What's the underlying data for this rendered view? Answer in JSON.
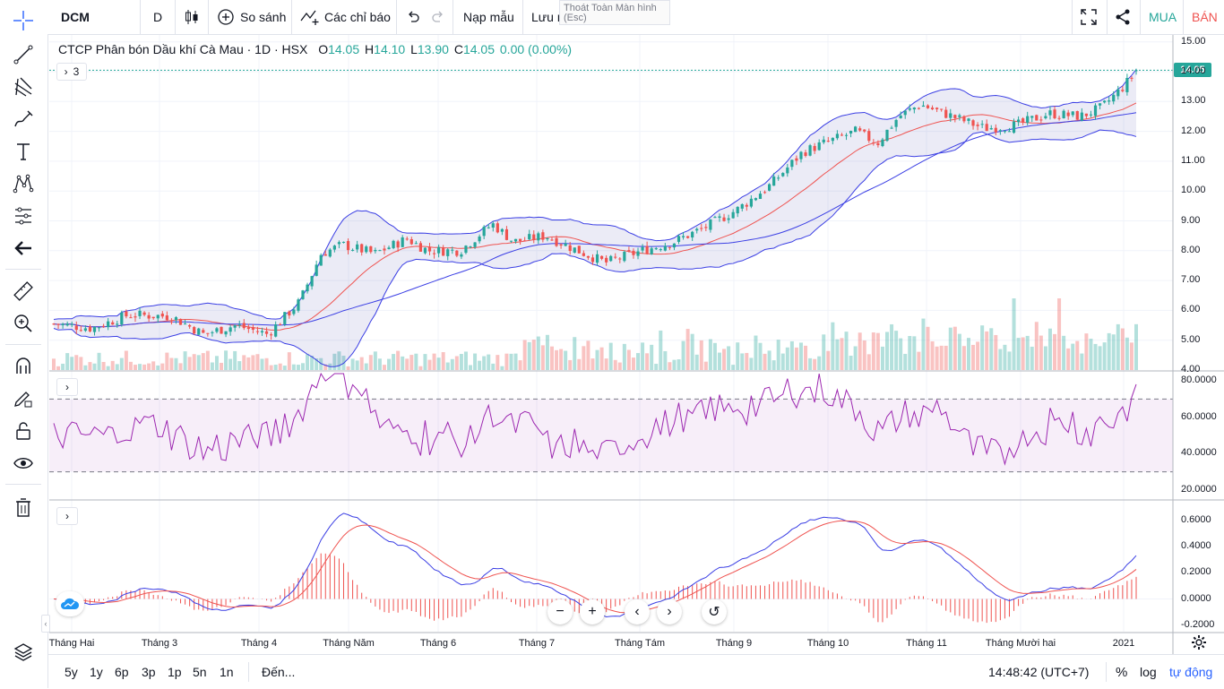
{
  "toolbar": {
    "symbol": "DCM",
    "interval": "D",
    "compare_label": "So sánh",
    "indicators_label": "Các chỉ báo",
    "templates_label": "Nạp mẫu",
    "save_label": "Lưu mẫu",
    "tooltip_text": "Thoát Toàn Màn hình",
    "tooltip_suffix": "(Esc)",
    "buy_label": "MUA",
    "sell_label": "BÁN"
  },
  "colors": {
    "up": "#26a69a",
    "down": "#ef5350",
    "bb": "#3b3fe4",
    "rsi": "#9c27b0",
    "ma": "#ef5350"
  },
  "legend": {
    "title": "CTCP Phân bón Dầu khí Cà Mau · 1D · HSX",
    "open_label": "O",
    "open": "14.05",
    "high_label": "H",
    "high": "14.10",
    "low_label": "L",
    "low": "13.90",
    "close_label": "C",
    "close": "14.05",
    "change": "0.00 (0.00%)",
    "indicator_count": "3"
  },
  "price_tag": "14.05",
  "price_axis": [
    "15.00",
    "14.00",
    "13.00",
    "12.00",
    "11.00",
    "10.00",
    "9.00",
    "8.00",
    "7.00",
    "6.00",
    "5.00",
    "4.00"
  ],
  "rsi_axis": [
    "80.0000",
    "60.0000",
    "40.0000",
    "20.0000"
  ],
  "macd_axis": [
    "0.6000",
    "0.4000",
    "0.2000",
    "0.0000",
    "-0.2000"
  ],
  "time_axis": [
    "Tháng Hai",
    "Tháng 3",
    "Tháng 4",
    "Tháng Năm",
    "Tháng 6",
    "Tháng 7",
    "Tháng Tám",
    "Tháng 9",
    "Tháng 10",
    "Tháng 11",
    "Tháng Mười hai",
    "2021"
  ],
  "bottom": {
    "ranges": [
      "5y",
      "1y",
      "6p",
      "3p",
      "1p",
      "5n",
      "1n"
    ],
    "goto": "Đến...",
    "clock": "14:48:42 (UTC+7)",
    "percent": "%",
    "log": "log",
    "auto": "tự động"
  },
  "chart_data": {
    "type": "candlestick",
    "title": "CTCP Phân bón Dầu khí Cà Mau · 1D · HSX",
    "ylim": [
      4,
      15.2
    ],
    "close_points": [
      {
        "x": "Tháng Hai",
        "close": 5.5
      },
      {
        "x": "Tháng 3",
        "close": 5.9
      },
      {
        "x": "Tháng 3 (mid)",
        "close": 5.3
      },
      {
        "x": "Tháng 4",
        "close": 5.3
      },
      {
        "x": "Tháng Năm",
        "close": 7.8
      },
      {
        "x": "Tháng Năm (mid)",
        "close": 8.2
      },
      {
        "x": "Tháng 6",
        "close": 8.0
      },
      {
        "x": "Tháng 7",
        "close": 8.6
      },
      {
        "x": "Tháng Tám",
        "close": 7.6
      },
      {
        "x": "Tháng 9",
        "close": 8.9
      },
      {
        "x": "Tháng 9 (late)",
        "close": 10.0
      },
      {
        "x": "Tháng 10",
        "close": 11.5
      },
      {
        "x": "Tháng 11",
        "close": 12.8
      },
      {
        "x": "Tháng Mười hai",
        "close": 12.0
      },
      {
        "x": "Tháng Mười hai (late)",
        "close": 12.6
      },
      {
        "x": "2021",
        "close": 14.05
      }
    ],
    "rsi_levels": {
      "upper": 70,
      "lower": 30,
      "ylim": [
        15,
        85
      ]
    },
    "macd_ylim": [
      -0.25,
      0.75
    ]
  }
}
